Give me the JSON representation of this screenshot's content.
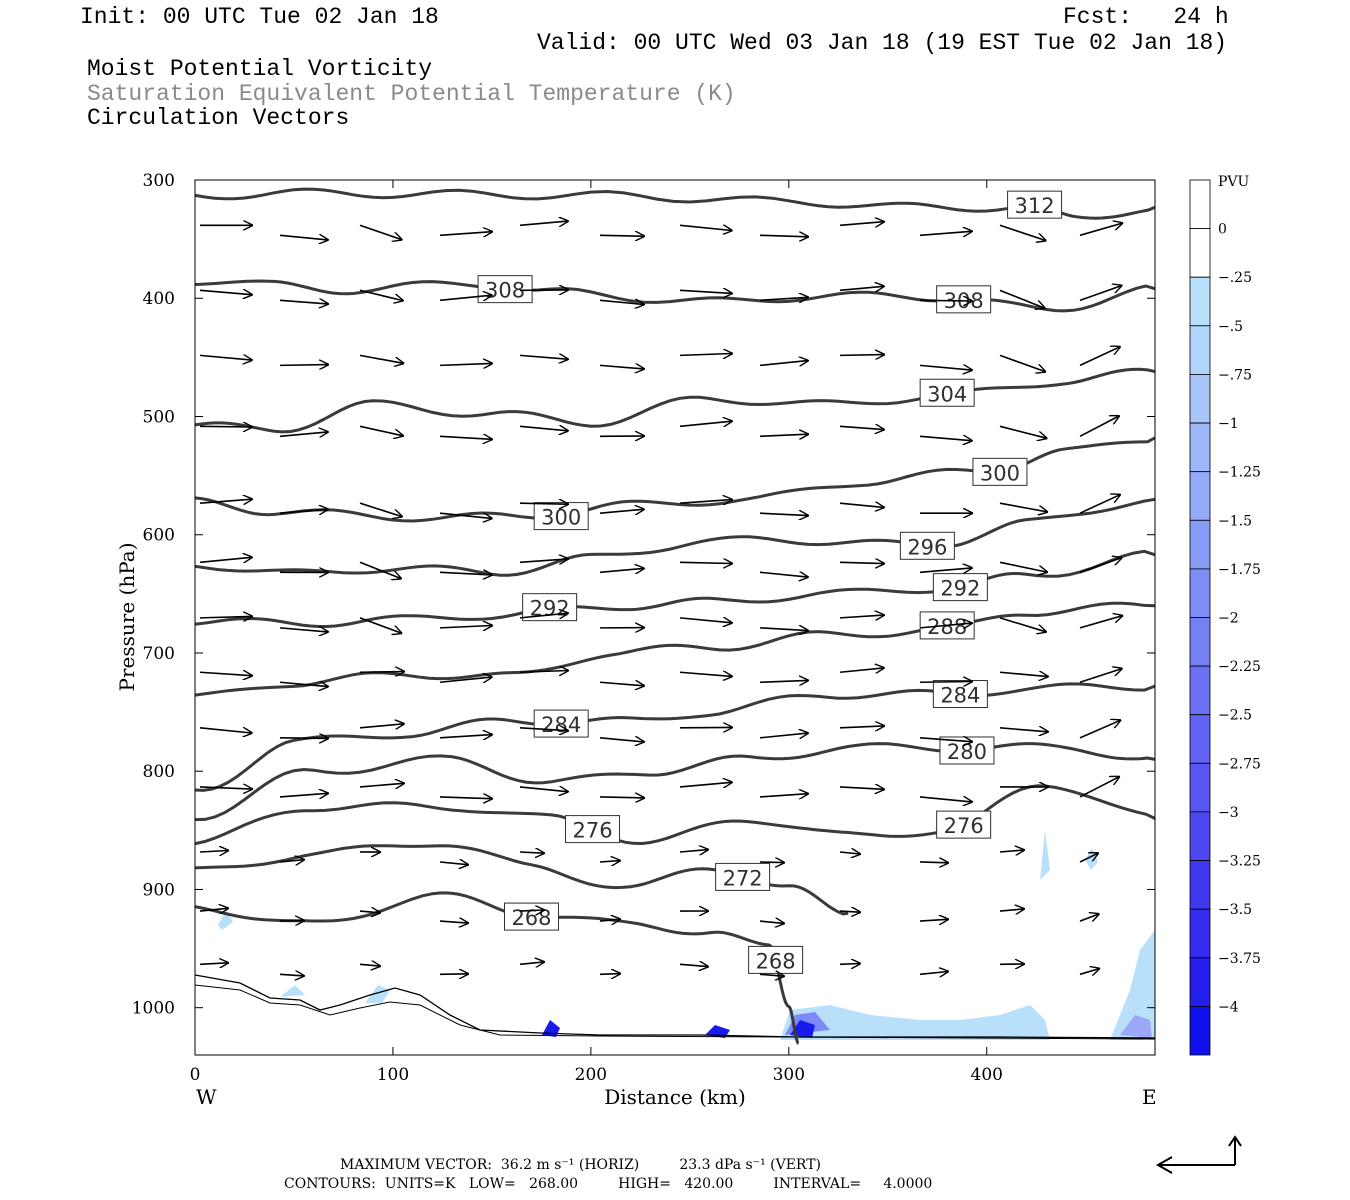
{
  "header": {
    "init": "Init: 00 UTC Tue 02 Jan 18",
    "fcst": "Fcst:   24 h",
    "valid": "Valid: 00 UTC Wed 03 Jan 18 (19 EST Tue 02 Jan 18)",
    "field1": "Moist Potential Vorticity",
    "field2": "Saturation Equivalent Potential Temperature (K)",
    "field3": "Circulation Vectors"
  },
  "axes": {
    "xlabel": "Distance (km)",
    "ylabel": "Pressure (hPa)",
    "west": "W",
    "east": "E",
    "colorbar_unit": "PVU"
  },
  "footer": {
    "line1": "MAXIMUM VECTOR:  36.2 m s⁻¹ (HORIZ)         23.3 dPa s⁻¹ (VERT)",
    "line2": "CONTOURS:  UNITS=K   LOW=   268.00         HIGH=   420.00         INTERVAL=     4.0000"
  },
  "chart_data": {
    "type": "line",
    "title": "Moist Potential Vorticity / Saturation Equivalent Potential Temperature (K) / Circulation Vectors",
    "xlabel": "Distance (km)",
    "ylabel": "Pressure (hPa)",
    "xlim": [
      0,
      485
    ],
    "ylim": [
      1040,
      300
    ],
    "x_ticks": [
      0,
      100,
      200,
      300,
      400
    ],
    "y_ticks": [
      300,
      400,
      500,
      600,
      700,
      800,
      900,
      1000
    ],
    "contour_interval": 4,
    "contours": [
      {
        "label": "312",
        "x": [
          0,
          60,
          120,
          200,
          300,
          360,
          420,
          445,
          485
        ],
        "y": [
          313,
          311,
          312,
          313,
          318,
          323,
          323,
          333,
          323
        ]
      },
      {
        "label": "308",
        "x": [
          0,
          40,
          80,
          140,
          180,
          260,
          320,
          380,
          430,
          485
        ],
        "y": [
          385,
          389,
          393,
          387,
          395,
          403,
          398,
          399,
          410,
          392
        ]
      },
      {
        "label": "304",
        "x": [
          0,
          40,
          90,
          150,
          200,
          260,
          320,
          380,
          440,
          485
        ],
        "y": [
          508,
          511,
          490,
          498,
          505,
          485,
          490,
          482,
          470,
          462
        ]
      },
      {
        "label": "300",
        "x": [
          0,
          40,
          100,
          160,
          220,
          280,
          340,
          400,
          440,
          485
        ],
        "y": [
          572,
          580,
          585,
          585,
          575,
          570,
          555,
          545,
          530,
          518
        ]
      },
      {
        "label": "296",
        "x": [
          0,
          50,
          100,
          150,
          200,
          260,
          320,
          370,
          420,
          485
        ],
        "y": [
          625,
          633,
          628,
          632,
          620,
          605,
          605,
          610,
          590,
          570
        ]
      },
      {
        "label": "292",
        "x": [
          0,
          50,
          100,
          150,
          220,
          260,
          320,
          380,
          420,
          485
        ],
        "y": [
          673,
          675,
          672,
          668,
          660,
          657,
          650,
          645,
          635,
          617
        ]
      },
      {
        "label": "288",
        "x": [
          0,
          50,
          110,
          160,
          210,
          260,
          320,
          380,
          420,
          485
        ],
        "y": [
          738,
          725,
          718,
          720,
          700,
          695,
          685,
          680,
          665,
          660
        ]
      },
      {
        "label": "284",
        "x": [
          0,
          50,
          110,
          160,
          220,
          260,
          320,
          380,
          420,
          485
        ],
        "y": [
          818,
          775,
          768,
          757,
          758,
          750,
          735,
          735,
          730,
          728
        ]
      },
      {
        "label": "280",
        "x": [
          0,
          60,
          130,
          180,
          230,
          280,
          330,
          390,
          440,
          485
        ],
        "y": [
          838,
          800,
          790,
          810,
          800,
          790,
          780,
          780,
          780,
          790
        ]
      },
      {
        "label": "276",
        "x": [
          0,
          60,
          130,
          180,
          230,
          280,
          330,
          380,
          430,
          485
        ],
        "y": [
          860,
          830,
          830,
          840,
          860,
          840,
          855,
          850,
          810,
          840
        ]
      },
      {
        "label": "272",
        "x": [
          0,
          60,
          120,
          170,
          220,
          260,
          300,
          330
        ],
        "y": [
          885,
          870,
          860,
          880,
          900,
          880,
          900,
          920
        ]
      },
      {
        "label": "268",
        "x": [
          0,
          60,
          120,
          170,
          220,
          260,
          290,
          300,
          305
        ],
        "y": [
          915,
          930,
          905,
          920,
          930,
          935,
          950,
          1000,
          1030
        ]
      }
    ],
    "colorbar": {
      "label": "PVU",
      "levels": [
        0,
        -0.25,
        -0.5,
        -0.75,
        -1,
        -1.25,
        -1.5,
        -1.75,
        -2,
        -2.25,
        -2.5,
        -2.75,
        -3,
        -3.25,
        -3.5,
        -3.75,
        -4
      ],
      "tick_labels": [
        "0",
        "-.25",
        "-.5",
        "-.75",
        "-1",
        "-1.25",
        "-1.5",
        "-1.75",
        "-2",
        "-2.25",
        "-2.5",
        "-2.75",
        "-3",
        "-3.25",
        "-3.5",
        "-3.75",
        "-4"
      ]
    },
    "max_vector": {
      "horiz": "36.2 m s⁻¹",
      "vert": "23.3 dPa s⁻¹"
    },
    "contour_summary": {
      "units": "K",
      "low": 268.0,
      "high": 420.0,
      "interval": 4.0
    }
  }
}
